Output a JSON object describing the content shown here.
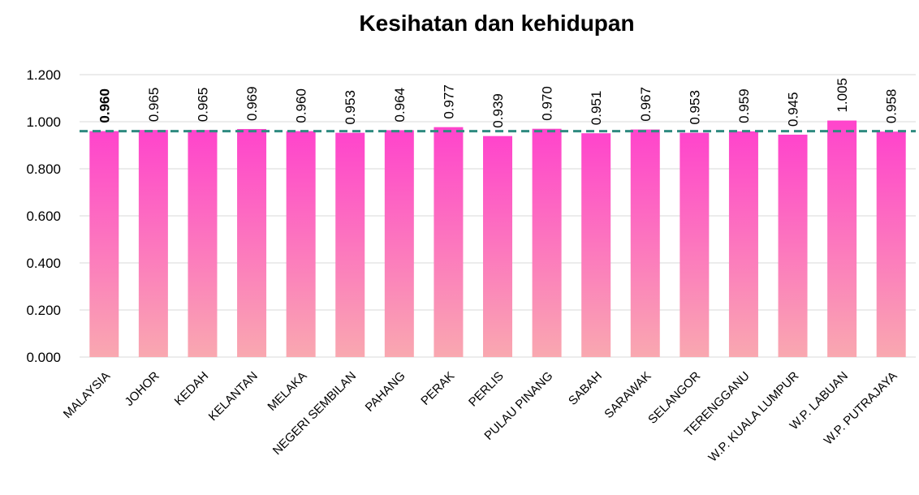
{
  "chart_data": {
    "type": "bar",
    "title": "Kesihatan dan kehidupan",
    "categories": [
      "MALAYSIA",
      "JOHOR",
      "KEDAH",
      "KELANTAN",
      "MELAKA",
      "NEGERI SEMBILAN",
      "PAHANG",
      "PERAK",
      "PERLIS",
      "PULAU PINANG",
      "SABAH",
      "SARAWAK",
      "SELANGOR",
      "TERENGGANU",
      "W.P. KUALA LUMPUR",
      "W.P. LABUAN",
      "W.P. PUTRAJAYA"
    ],
    "values": [
      0.96,
      0.965,
      0.965,
      0.969,
      0.96,
      0.953,
      0.964,
      0.977,
      0.939,
      0.97,
      0.951,
      0.967,
      0.953,
      0.959,
      0.945,
      1.005,
      0.958
    ],
    "value_labels": [
      "0.960",
      "0.965",
      "0.965",
      "0.969",
      "0.960",
      "0.953",
      "0.964",
      "0.977",
      "0.939",
      "0.970",
      "0.951",
      "0.967",
      "0.953",
      "0.959",
      "0.945",
      "1.005",
      "0.958"
    ],
    "color": [
      "#ff44cc",
      "#f9a8b0"
    ],
    "reference_line": {
      "value": 0.96,
      "color": "#2e8b80"
    },
    "ylim": [
      0,
      1.2
    ],
    "yticks": [
      {
        "value": 0,
        "label": "0.000"
      },
      {
        "value": 0.2,
        "label": "0.200"
      },
      {
        "value": 0.4,
        "label": "0.400"
      },
      {
        "value": 0.6,
        "label": "0.600"
      },
      {
        "value": 0.8,
        "label": "0.800"
      },
      {
        "value": 1,
        "label": "1.000"
      },
      {
        "value": 1.2,
        "label": "1.200"
      }
    ],
    "grid": true
  }
}
